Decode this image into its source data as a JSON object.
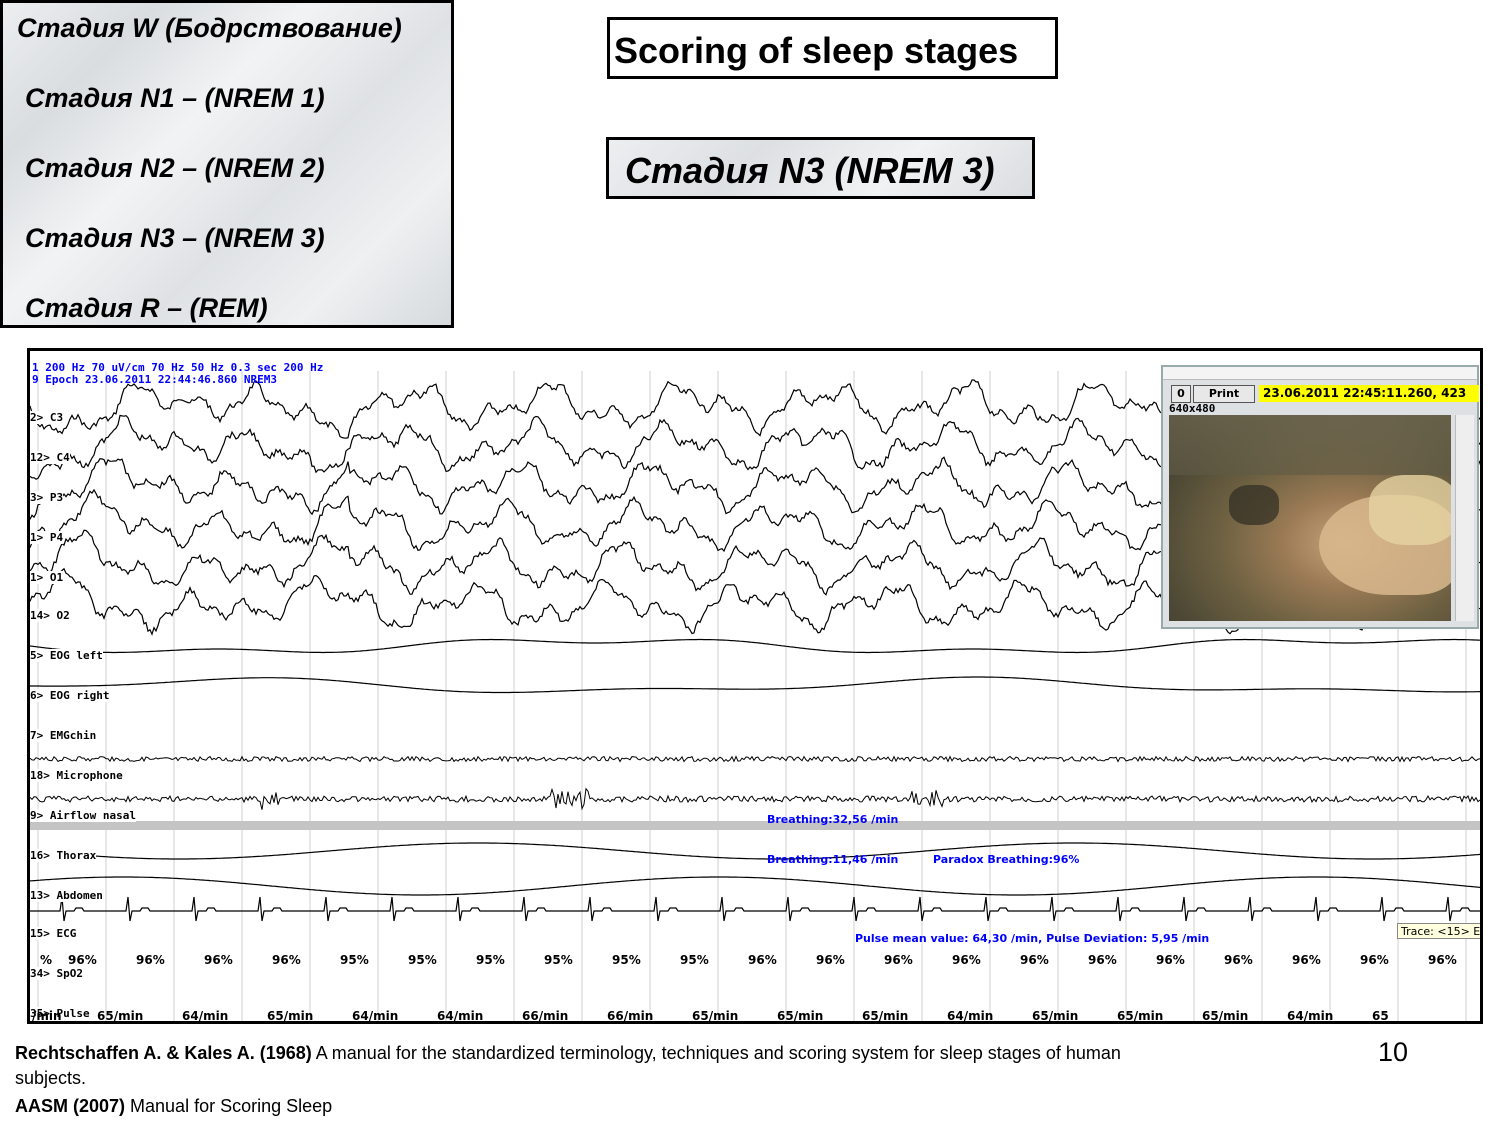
{
  "stages": [
    "Стадия W (Бодрствование)",
    "Стадия N1 – (NREM 1)",
    "Стадия N2 – (NREM 2)",
    "Стадия N3 – (NREM 3)",
    "Стадия R – (REM)"
  ],
  "title": "Scoring of sleep stages",
  "current_stage": "Стадия N3 (NREM 3)",
  "recording": {
    "header_line1": "1 200 Hz 70 uV/cm 70 Hz 50 Hz 0.3 sec 200 Hz",
    "header_line2": "9 Epoch  23.06.2011 22:44:46.860 NREM3",
    "channels": [
      "2> C3",
      "12> C4",
      "3> P3",
      "1> P4",
      "1> O1",
      "14> O2",
      "5> EOG left",
      "6> EOG right",
      "7> EMGchin",
      "18> Microphone",
      "9> Airflow nasal",
      "16> Thorax",
      "13> Abdomen",
      "15> ECG",
      "34> SpO2",
      "35> Pulse"
    ],
    "annotations": {
      "airflow": "Breathing:32,56 /min",
      "thorax": "Breathing:11,46 /min",
      "paradox": "Paradox Breathing:96%",
      "pulse": "Pulse mean value: 64,30 /min, Pulse Deviation:  5,95 /min"
    },
    "spo2_values": [
      "%",
      "96%",
      "96%",
      "96%",
      "96%",
      "95%",
      "95%",
      "95%",
      "95%",
      "95%",
      "95%",
      "96%",
      "96%",
      "96%",
      "96%",
      "96%",
      "96%",
      "96%",
      "96%",
      "96%",
      "96%",
      "96%"
    ],
    "pulse_values": [
      "/min",
      "65/min",
      "64/min",
      "65/min",
      "64/min",
      "64/min",
      "66/min",
      "66/min",
      "65/min",
      "65/min",
      "65/min",
      "64/min",
      "65/min",
      "65/min",
      "65/min",
      "64/min",
      "65"
    ],
    "trace_label": "Trace: <15> E"
  },
  "video": {
    "btn_zero": "0",
    "btn_print": "Print",
    "timestamp": "23.06.2011 22:45:11.260, 423",
    "resolution": "640x480"
  },
  "refs": {
    "ref1_bold": "Rechtschaffen A. & Kales A. (1968)",
    "ref1_text": " A manual for the standardized terminology, techniques and scoring system for sleep stages of human",
    "ref1_cont": "subjects.",
    "ref2_bold": "AASM (2007)",
    "ref2_text": " Manual for Scoring Sleep"
  },
  "page_number": "10"
}
